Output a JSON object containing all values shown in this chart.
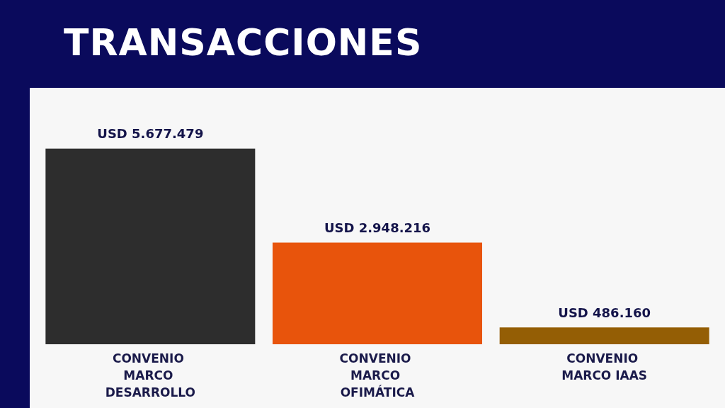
{
  "chart_data": {
    "type": "bar",
    "title": "TRANSACCIONES",
    "categories": [
      "CONVENIO MARCO DESARROLLO",
      "CONVENIO MARCO OFIMÁTICA",
      "CONVENIO MARCO IAAS"
    ],
    "values": [
      5677479,
      2948216,
      486160
    ],
    "colors": [
      "#2d2d2d",
      "#e8540c",
      "#945e05"
    ],
    "value_labels": [
      "USD 5.677.479",
      "USD 2.948.216",
      "USD 486.160"
    ]
  }
}
